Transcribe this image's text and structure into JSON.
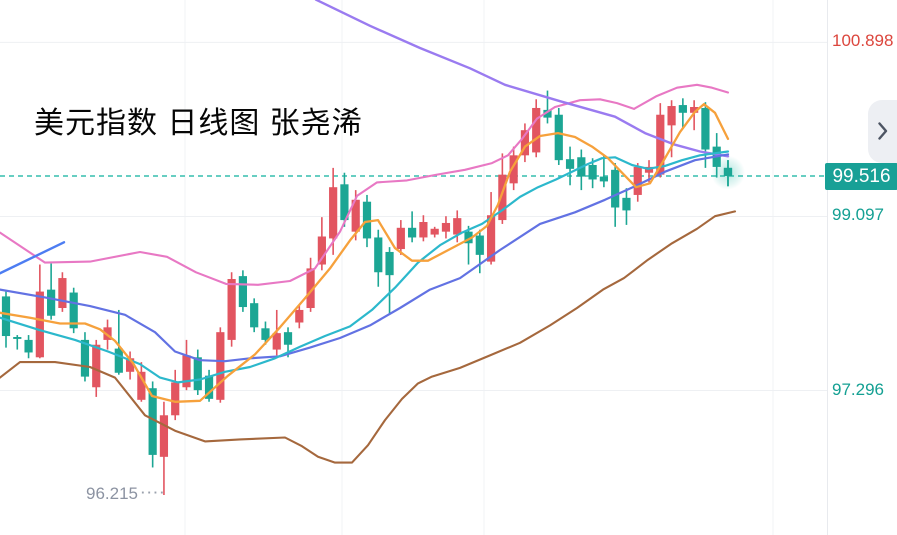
{
  "title": "美元指数 日线图 张尧浠",
  "panel": {
    "collapse_tooltip": "collapse"
  },
  "axis": {
    "labels": [
      {
        "value": "100.898",
        "price": 100.898,
        "color": "#dc463d"
      },
      {
        "value": "99.097",
        "price": 99.097,
        "color": "#14a093"
      },
      {
        "value": "97.296",
        "price": 97.296,
        "color": "#14a093"
      }
    ],
    "current_price": {
      "value": "99.516",
      "price": 99.516,
      "bg": "#18a096",
      "text_color": "#ffffff"
    },
    "low_label": {
      "value": "96.215",
      "price": 96.215,
      "color": "#8c93a2",
      "leader": "····"
    }
  },
  "chart_data": {
    "type": "candlestick",
    "title": "美元指数 日线图 张尧浠",
    "timeframe": "daily",
    "color_convention": "CN: red = up candle, green = down candle",
    "ylim": [
      96.0,
      101.35
    ],
    "grid": {
      "h_prices": [
        100.898,
        99.097,
        97.296
      ],
      "v_x": [
        185,
        342,
        484,
        773
      ]
    },
    "style": {
      "up_color": "#e25560",
      "down_color": "#1ca694",
      "upper_band": "#e878c4",
      "lower_band": "#a5683d",
      "ma_fast": "#f6a13c",
      "ma_mid": "#2cb8cc",
      "ma_slow": "#6272e3",
      "trend_down": "#9a7bf0",
      "trend_up": "#4d7df2",
      "current_line": "#35bdae",
      "grid_h": "#eef0f3",
      "grid_v": "#f2f3f6"
    },
    "candles": [
      [
        98.27,
        98.32,
        97.74,
        97.86
      ],
      [
        97.85,
        97.87,
        97.72,
        97.83
      ],
      [
        97.82,
        97.87,
        97.63,
        97.69
      ],
      [
        97.64,
        98.6,
        97.63,
        98.32
      ],
      [
        98.34,
        98.61,
        98.03,
        98.07
      ],
      [
        98.15,
        98.52,
        98.11,
        98.46
      ],
      [
        98.31,
        98.36,
        97.89,
        97.94
      ],
      [
        97.82,
        97.9,
        97.39,
        97.44
      ],
      [
        97.33,
        97.82,
        97.23,
        97.77
      ],
      [
        97.82,
        98.03,
        97.72,
        97.95
      ],
      [
        97.73,
        98.13,
        97.46,
        97.48
      ],
      [
        97.49,
        97.7,
        97.41,
        97.63
      ],
      [
        97.2,
        97.59,
        97.18,
        97.49
      ],
      [
        97.32,
        97.39,
        96.5,
        96.63
      ],
      [
        96.61,
        97.18,
        96.215,
        97.04
      ],
      [
        97.04,
        97.51,
        96.99,
        97.38
      ],
      [
        97.33,
        97.82,
        97.3,
        97.66
      ],
      [
        97.64,
        97.72,
        97.25,
        97.3
      ],
      [
        97.45,
        97.51,
        97.18,
        97.21
      ],
      [
        97.2,
        97.95,
        97.17,
        97.9
      ],
      [
        97.82,
        98.52,
        97.75,
        98.45
      ],
      [
        98.48,
        98.54,
        98.11,
        98.16
      ],
      [
        98.2,
        98.25,
        97.9,
        97.95
      ],
      [
        97.94,
        98.01,
        97.77,
        97.82
      ],
      [
        97.72,
        98.13,
        97.66,
        97.89
      ],
      [
        97.9,
        97.95,
        97.64,
        97.77
      ],
      [
        98.0,
        98.19,
        97.94,
        98.13
      ],
      [
        98.15,
        98.67,
        98.11,
        98.56
      ],
      [
        98.6,
        99.09,
        98.54,
        98.89
      ],
      [
        98.87,
        99.6,
        98.7,
        99.4
      ],
      [
        99.43,
        99.55,
        98.99,
        99.06
      ],
      [
        98.94,
        99.37,
        98.85,
        99.27
      ],
      [
        99.25,
        99.32,
        98.78,
        98.87
      ],
      [
        98.88,
        98.96,
        98.37,
        98.52
      ],
      [
        98.73,
        98.78,
        98.08,
        98.49
      ],
      [
        98.76,
        99.06,
        98.7,
        98.98
      ],
      [
        98.98,
        99.15,
        98.83,
        98.88
      ],
      [
        98.88,
        99.11,
        98.84,
        99.04
      ],
      [
        98.91,
        98.99,
        98.88,
        98.97
      ],
      [
        98.94,
        99.1,
        98.87,
        99.03
      ],
      [
        98.91,
        99.16,
        98.83,
        99.08
      ],
      [
        98.94,
        99.0,
        98.6,
        98.82
      ],
      [
        98.9,
        98.96,
        98.51,
        98.7
      ],
      [
        98.63,
        99.35,
        98.6,
        99.11
      ],
      [
        99.06,
        99.75,
        99.02,
        99.53
      ],
      [
        99.44,
        99.82,
        99.37,
        99.73
      ],
      [
        99.73,
        100.06,
        99.66,
        99.99
      ],
      [
        99.76,
        100.31,
        99.71,
        100.22
      ],
      [
        100.2,
        100.4,
        100.06,
        100.12
      ],
      [
        100.15,
        100.22,
        99.63,
        99.68
      ],
      [
        99.69,
        99.82,
        99.42,
        99.59
      ],
      [
        99.71,
        99.79,
        99.37,
        99.51
      ],
      [
        99.63,
        99.7,
        99.39,
        99.48
      ],
      [
        99.51,
        99.73,
        99.4,
        99.46
      ],
      [
        99.58,
        99.65,
        98.99,
        99.19
      ],
      [
        99.29,
        99.39,
        99.01,
        99.16
      ],
      [
        99.32,
        99.65,
        99.25,
        99.61
      ],
      [
        99.55,
        99.68,
        99.45,
        99.61
      ],
      [
        99.53,
        100.27,
        99.5,
        100.15
      ],
      [
        100.04,
        100.3,
        99.71,
        100.24
      ],
      [
        100.25,
        100.32,
        100.01,
        100.17
      ],
      [
        100.17,
        100.3,
        99.99,
        100.23
      ],
      [
        100.22,
        100.28,
        99.6,
        99.79
      ],
      [
        99.82,
        99.96,
        99.5,
        99.61
      ],
      [
        99.6,
        99.68,
        99.41,
        99.516
      ]
    ],
    "overlays": [
      {
        "name": "upper_band",
        "color": "#e878c4",
        "w": 2.1,
        "points": [
          [
            0,
            98.93
          ],
          [
            45,
            98.62
          ],
          [
            90,
            98.63
          ],
          [
            140,
            98.73
          ],
          [
            167,
            98.68
          ],
          [
            196,
            98.52
          ],
          [
            226,
            98.4
          ],
          [
            258,
            98.39
          ],
          [
            290,
            98.43
          ],
          [
            315,
            98.56
          ],
          [
            340,
            98.94
          ],
          [
            357,
            99.31
          ],
          [
            377,
            99.45
          ],
          [
            407,
            99.47
          ],
          [
            437,
            99.53
          ],
          [
            465,
            99.58
          ],
          [
            492,
            99.65
          ],
          [
            508,
            99.73
          ],
          [
            522,
            99.9
          ],
          [
            537,
            100.11
          ],
          [
            555,
            100.23
          ],
          [
            580,
            100.3
          ],
          [
            600,
            100.31
          ],
          [
            617,
            100.27
          ],
          [
            634,
            100.21
          ],
          [
            656,
            100.34
          ],
          [
            677,
            100.43
          ],
          [
            697,
            100.46
          ],
          [
            712,
            100.43
          ],
          [
            728,
            100.38
          ]
        ]
      },
      {
        "name": "lower_band",
        "color": "#a5683d",
        "w": 2.1,
        "points": [
          [
            0,
            97.43
          ],
          [
            20,
            97.59
          ],
          [
            55,
            97.59
          ],
          [
            90,
            97.54
          ],
          [
            115,
            97.43
          ],
          [
            145,
            97.04
          ],
          [
            175,
            96.88
          ],
          [
            205,
            96.77
          ],
          [
            240,
            96.79
          ],
          [
            285,
            96.81
          ],
          [
            302,
            96.72
          ],
          [
            318,
            96.61
          ],
          [
            335,
            96.55
          ],
          [
            352,
            96.55
          ],
          [
            368,
            96.73
          ],
          [
            385,
            96.99
          ],
          [
            402,
            97.21
          ],
          [
            418,
            97.37
          ],
          [
            432,
            97.44
          ],
          [
            460,
            97.53
          ],
          [
            490,
            97.66
          ],
          [
            520,
            97.79
          ],
          [
            550,
            97.97
          ],
          [
            577,
            98.15
          ],
          [
            603,
            98.34
          ],
          [
            624,
            98.46
          ],
          [
            648,
            98.65
          ],
          [
            672,
            98.82
          ],
          [
            697,
            98.97
          ],
          [
            715,
            99.1
          ],
          [
            735,
            99.15
          ]
        ]
      },
      {
        "name": "trend_down",
        "color": "#9a7bf0",
        "w": 2.4,
        "points": [
          [
            316,
            101.34
          ],
          [
            370,
            101.07
          ],
          [
            420,
            100.84
          ],
          [
            470,
            100.63
          ],
          [
            505,
            100.46
          ],
          [
            560,
            100.29
          ],
          [
            615,
            100.13
          ],
          [
            645,
            99.96
          ],
          [
            675,
            99.84
          ],
          [
            700,
            99.77
          ],
          [
            728,
            99.72
          ]
        ]
      },
      {
        "name": "trend_up",
        "color": "#4d7df2",
        "w": 2.4,
        "points": [
          [
            -4,
            98.49
          ],
          [
            64,
            98.83
          ]
        ]
      },
      {
        "name": "ma_slow",
        "color": "#6272e3",
        "w": 2.2,
        "points": [
          [
            0,
            98.34
          ],
          [
            45,
            98.26
          ],
          [
            90,
            98.17
          ],
          [
            125,
            98.08
          ],
          [
            155,
            97.9
          ],
          [
            175,
            97.7
          ],
          [
            200,
            97.61
          ],
          [
            225,
            97.6
          ],
          [
            250,
            97.63
          ],
          [
            280,
            97.65
          ],
          [
            310,
            97.74
          ],
          [
            340,
            97.84
          ],
          [
            370,
            97.97
          ],
          [
            400,
            98.15
          ],
          [
            430,
            98.34
          ],
          [
            460,
            98.46
          ],
          [
            500,
            98.75
          ],
          [
            540,
            99.02
          ],
          [
            575,
            99.14
          ],
          [
            605,
            99.27
          ],
          [
            635,
            99.41
          ],
          [
            665,
            99.56
          ],
          [
            695,
            99.68
          ],
          [
            728,
            99.74
          ]
        ]
      },
      {
        "name": "ma_mid",
        "color": "#2cb8cc",
        "w": 2.2,
        "points": [
          [
            0,
            98.05
          ],
          [
            40,
            97.92
          ],
          [
            75,
            97.82
          ],
          [
            108,
            97.7
          ],
          [
            140,
            97.57
          ],
          [
            160,
            97.43
          ],
          [
            178,
            97.38
          ],
          [
            200,
            97.41
          ],
          [
            225,
            97.49
          ],
          [
            250,
            97.54
          ],
          [
            275,
            97.63
          ],
          [
            300,
            97.75
          ],
          [
            325,
            97.86
          ],
          [
            350,
            97.96
          ],
          [
            372,
            98.13
          ],
          [
            395,
            98.36
          ],
          [
            418,
            98.62
          ],
          [
            440,
            98.8
          ],
          [
            462,
            98.93
          ],
          [
            482,
            99.02
          ],
          [
            502,
            99.16
          ],
          [
            520,
            99.3
          ],
          [
            538,
            99.4
          ],
          [
            556,
            99.48
          ],
          [
            572,
            99.56
          ],
          [
            588,
            99.64
          ],
          [
            602,
            99.7
          ],
          [
            615,
            99.71
          ],
          [
            632,
            99.63
          ],
          [
            648,
            99.59
          ],
          [
            665,
            99.62
          ],
          [
            682,
            99.68
          ],
          [
            700,
            99.73
          ],
          [
            728,
            99.77
          ]
        ]
      },
      {
        "name": "ma_fast",
        "color": "#f6a13c",
        "w": 2.3,
        "points": [
          [
            0,
            98.1
          ],
          [
            30,
            98.05
          ],
          [
            60,
            97.99
          ],
          [
            85,
            97.99
          ],
          [
            100,
            97.93
          ],
          [
            115,
            97.81
          ],
          [
            133,
            97.58
          ],
          [
            152,
            97.24
          ],
          [
            175,
            97.18
          ],
          [
            200,
            97.19
          ],
          [
            228,
            97.45
          ],
          [
            255,
            97.67
          ],
          [
            280,
            97.95
          ],
          [
            305,
            98.25
          ],
          [
            330,
            98.56
          ],
          [
            350,
            98.85
          ],
          [
            365,
            99.04
          ],
          [
            378,
            99.06
          ],
          [
            395,
            98.77
          ],
          [
            412,
            98.64
          ],
          [
            428,
            98.64
          ],
          [
            450,
            98.76
          ],
          [
            472,
            98.88
          ],
          [
            487,
            99.0
          ],
          [
            498,
            99.22
          ],
          [
            510,
            99.56
          ],
          [
            525,
            99.82
          ],
          [
            540,
            99.93
          ],
          [
            558,
            99.96
          ],
          [
            575,
            99.92
          ],
          [
            592,
            99.82
          ],
          [
            608,
            99.7
          ],
          [
            622,
            99.55
          ],
          [
            636,
            99.4
          ],
          [
            650,
            99.44
          ],
          [
            665,
            99.7
          ],
          [
            680,
            99.97
          ],
          [
            695,
            100.18
          ],
          [
            704,
            100.26
          ],
          [
            715,
            100.17
          ],
          [
            728,
            99.9
          ]
        ]
      }
    ]
  }
}
